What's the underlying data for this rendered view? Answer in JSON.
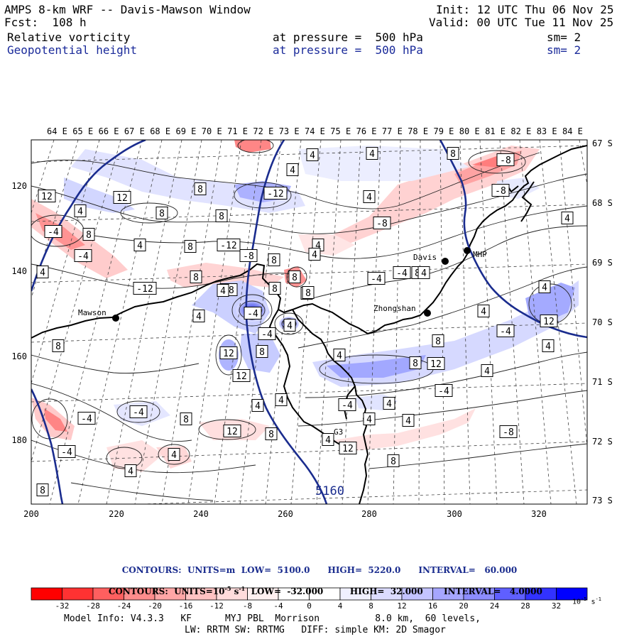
{
  "header": {
    "title": "AMPS 8-km WRF -- Davis-Mawson Window",
    "forecast": "Fcst:  108 h",
    "init": "Init: 12 UTC Thu 06 Nov 25",
    "valid": "Valid: 00 UTC Tue 11 Nov 25",
    "field1": {
      "name": "Relative vorticity",
      "level": "at pressure =  500 hPa",
      "smooth": "sm= 2"
    },
    "field2": {
      "name": "Geopotential height",
      "level": "at pressure =  500 hPa",
      "smooth": "sm= 2"
    }
  },
  "map": {
    "top_longitudes": [
      "64 E",
      "65 E",
      "66 E",
      "67 E",
      "68 E",
      "69 E",
      "70 E",
      "71 E",
      "72 E",
      "73 E",
      "74 E",
      "75 E",
      "76 E",
      "77 E",
      "78 E",
      "79 E",
      "80 E",
      "81 E",
      "82 E",
      "83 E",
      "84 E"
    ],
    "right_latitudes": [
      "67 S",
      "68 S",
      "69 S",
      "70 S",
      "71 S",
      "72 S",
      "73 S"
    ],
    "x_ticks": [
      "200",
      "220",
      "240",
      "260",
      "280",
      "300",
      "320"
    ],
    "y_ticks": [
      "120",
      "140",
      "160",
      "180"
    ],
    "stations": [
      {
        "name": "Mawson"
      },
      {
        "name": "Davis"
      },
      {
        "name": "Zhongshan"
      },
      {
        "name": "MHP"
      },
      {
        "name": "G3"
      }
    ],
    "height_contour_label": "5160",
    "vorticity_labels": [
      "4",
      "4",
      "4",
      "8",
      "12",
      "12",
      "8",
      "-12",
      "-8",
      "-8",
      "4",
      "8",
      "8",
      "4",
      "4",
      "8",
      "4",
      "8",
      "-12",
      "-4",
      "-8",
      "-4",
      "4",
      "-8",
      "8",
      "4",
      "8",
      "-4",
      "-4",
      "4",
      "4",
      "8",
      "-8",
      "8",
      "-12",
      "4",
      "4",
      "8",
      "4",
      "12",
      "8",
      "12",
      "8",
      "4",
      "8",
      "-4",
      "4",
      "8",
      "4",
      "-4",
      "4",
      "-4",
      "4",
      "4",
      "-4",
      "-4",
      "8",
      "-8",
      "12",
      "8",
      "-4",
      "4",
      "12",
      "4",
      "8",
      "4",
      "8",
      "8",
      "4",
      "-4",
      "12",
      "8",
      "4",
      "-4",
      "12",
      "4",
      "4"
    ]
  },
  "legend": {
    "line1": "CONTOURS:  UNITS=m  LOW=  5100.0      HIGH=  5220.0      INTERVAL=   60.000",
    "line2_part1": "CONTOURS:  UNITS=10",
    "line2_exp": "-5",
    "line2_part2": " s",
    "line2_exp2": "-1",
    "line2_part3": "  LOW=  -32.000         HIGH=  32.000       INTERVAL=   4.0000",
    "colorbar_labels": [
      "-32",
      "-28",
      "-24",
      "-20",
      "-16",
      "-12",
      "-8",
      "-4",
      "0",
      "4",
      "8",
      "12",
      "16",
      "20",
      "24",
      "28",
      "32"
    ],
    "colorbar_unit": "10",
    "colorbar_unit_exp": "-5",
    "colorbar_unit_s": " s",
    "colorbar_unit_exp2": "-1",
    "colors": [
      "#ff0000",
      "#ff3232",
      "#ff5f5f",
      "#ff8c8c",
      "#ffa6a6",
      "#ffc3c3",
      "#ffdcdc",
      "#fff0f0",
      "#ffffff",
      "#ffffff",
      "#f0f0ff",
      "#dcdcff",
      "#c3c3ff",
      "#a6a6ff",
      "#8c8cff",
      "#5f5fff",
      "#3232ff",
      "#0000ff"
    ]
  },
  "footer": {
    "line1": "Model Info: V4.3.3   KF      MYJ PBL  Morrison          8.0 km,  60 levels,",
    "line2": "LW: RRTM SW: RRTMG   DIFF: simple KM: 2D Smagor"
  }
}
